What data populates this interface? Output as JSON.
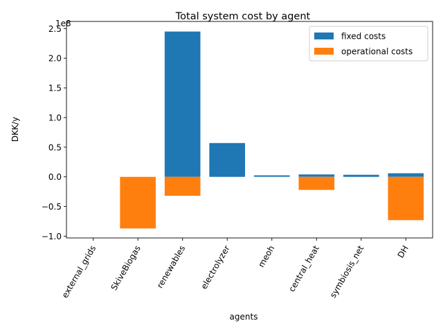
{
  "chart_data": {
    "type": "bar",
    "title": "Total  system cost by agent",
    "xlabel": "agents",
    "ylabel": "DKK/y",
    "offset_label": "1e8",
    "categories": [
      "external_grids",
      "SkiveBiogas",
      "renewables",
      "electrolyzer",
      "meoh",
      "central_heat",
      "symbiosis_net",
      "DH"
    ],
    "ylim": [
      -103000000.0,
      262000000.0
    ],
    "yticks": [
      -100000000.0,
      -50000000.0,
      0,
      50000000.0,
      100000000.0,
      150000000.0,
      200000000.0,
      250000000.0
    ],
    "ytick_labels": [
      "−1.0",
      "−0.5",
      "0.0",
      "0.5",
      "1.0",
      "1.5",
      "2.0",
      "2.5"
    ],
    "grid": false,
    "legend_position": "top-right",
    "series": [
      {
        "name": "fixed costs",
        "color": "#1f77b4",
        "values": [
          0,
          0,
          245000000.0,
          57000000.0,
          2500000.0,
          4000000.0,
          3500000.0,
          6000000.0
        ]
      },
      {
        "name": "operational costs",
        "color": "#ff7f0e",
        "values": [
          0,
          -87000000.0,
          -32000000.0,
          0,
          0,
          -22000000.0,
          0,
          -73000000.0
        ]
      }
    ]
  }
}
